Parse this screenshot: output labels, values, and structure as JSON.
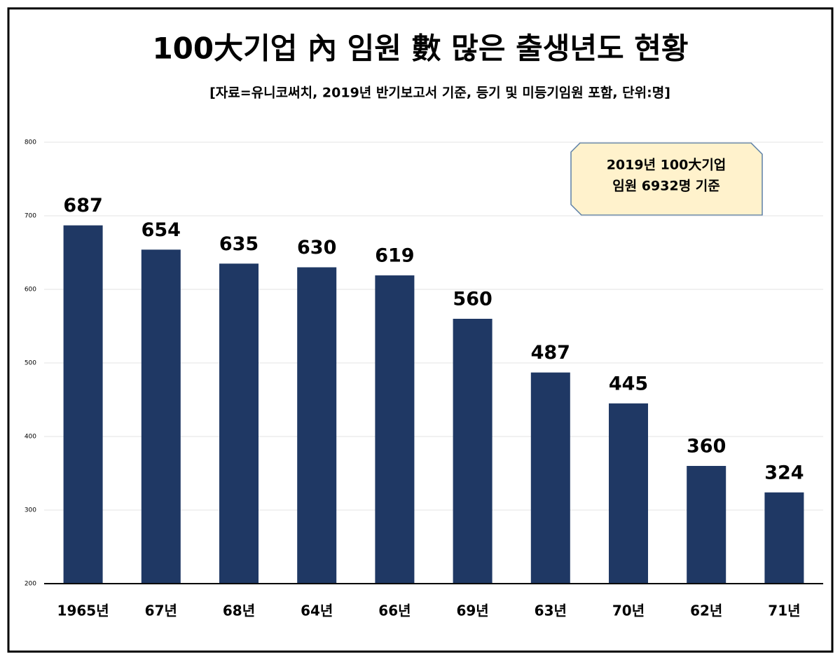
{
  "chart_data": {
    "type": "bar",
    "title": "100大기업 內 임원 數 많은 출생년도 현황",
    "subtitle": "[자료=유니코써치, 2019년 반기보고서 기준, 등기 및 미등기임원 포함, 단위:명]",
    "annotation": [
      "2019년 100大기업",
      "임원 6932명 기준"
    ],
    "categories": [
      "1965년",
      "67년",
      "68년",
      "64년",
      "66년",
      "69년",
      "63년",
      "70년",
      "62년",
      "71년"
    ],
    "values": [
      687,
      654,
      635,
      630,
      619,
      560,
      487,
      445,
      360,
      324
    ],
    "color": "#1f3864",
    "ylim": [
      200,
      800
    ],
    "yticks": [
      200,
      300,
      400,
      500,
      600,
      700,
      800
    ],
    "grid": true
  }
}
